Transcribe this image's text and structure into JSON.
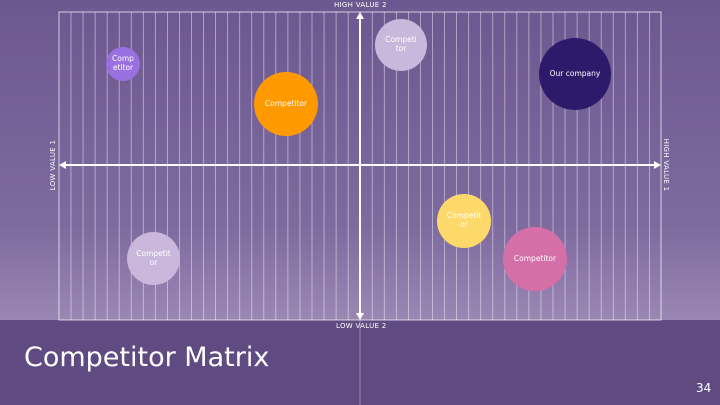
{
  "title": "Competitor Matrix",
  "page_number": "34",
  "axes": {
    "top": "HIGH VALUE 2",
    "bottom": "LOW VALUE 2",
    "left": "LOW VALUE 1",
    "right": "HIGH VALUE 1"
  },
  "bubbles": [
    {
      "label": "Competitor"
    },
    {
      "label": "Competitor"
    },
    {
      "label": "Competitor"
    },
    {
      "label": "Our company"
    },
    {
      "label": "Competitor"
    },
    {
      "label": "Competitor"
    },
    {
      "label": "Competitor"
    }
  ]
}
